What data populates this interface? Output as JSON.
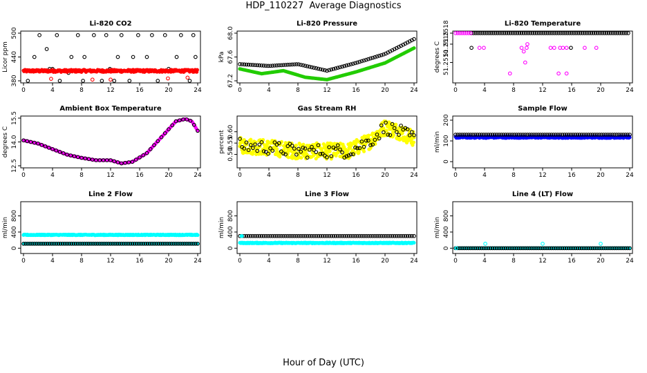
{
  "figure": {
    "title": "HDP_110227  Average Diagnostics",
    "xlabel": "Hour of Day (UTC)"
  },
  "colors": {
    "black": "#000000",
    "red": "#ff0000",
    "green": "#22cc00",
    "magenta": "#ff00ff",
    "yellow": "#ffff00",
    "blue": "#0000ff",
    "cyan": "#00ffff"
  },
  "chart_data": [
    {
      "type": "scatter",
      "title": "Li-820 CO2",
      "ylabel": "Licor ppm",
      "xlim": [
        0,
        24
      ],
      "ylim": [
        380,
        500
      ],
      "xticks": [
        "0",
        "4",
        "8",
        "12",
        "16",
        "20",
        "24"
      ],
      "yticks": [
        "380",
        "440",
        "500"
      ],
      "series": [
        {
          "color": "black",
          "hollow": true,
          "points": [
            [
              0.6,
              380
            ],
            [
              2.2,
              495
            ],
            [
              3.6,
              410
            ],
            [
              4.6,
              495
            ],
            [
              5.0,
              380
            ],
            [
              6.2,
              400
            ],
            [
              7.5,
              495
            ],
            [
              8.2,
              380
            ],
            [
              9.7,
              495
            ],
            [
              10.8,
              380
            ],
            [
              11.4,
              495
            ],
            [
              13.5,
              495
            ],
            [
              14.6,
              380
            ],
            [
              15.8,
              495
            ],
            [
              17.7,
              495
            ],
            [
              18.5,
              380
            ],
            [
              19.5,
              495
            ],
            [
              23.4,
              495
            ],
            [
              1.5,
              440
            ],
            [
              3.2,
              460
            ],
            [
              6.6,
              440
            ],
            [
              8.4,
              440
            ],
            [
              13.0,
              440
            ],
            [
              15.1,
              440
            ],
            [
              17.0,
              440
            ],
            [
              21.1,
              440
            ],
            [
              21.7,
              495
            ],
            [
              23.7,
              440
            ],
            [
              4.0,
              410
            ],
            [
              11.9,
              410
            ],
            [
              20.0,
              410
            ],
            [
              12.5,
              380
            ],
            [
              22.9,
              380
            ]
          ]
        },
        {
          "color": "red",
          "hollow": false,
          "band": true,
          "y": 405,
          "jitter": 3,
          "step": 0.07,
          "xrange": [
            0,
            24
          ]
        },
        {
          "color": "red",
          "hollow": true,
          "points": [
            [
              3.8,
              385
            ],
            [
              12.0,
              383
            ],
            [
              19.9,
              386
            ],
            [
              22.6,
              388
            ],
            [
              9.5,
              383
            ]
          ]
        }
      ]
    },
    {
      "type": "scatter",
      "title": "Li-820 Pressure",
      "ylabel": "kPa",
      "xlim": [
        0,
        24
      ],
      "ylim": [
        67.2,
        68.0
      ],
      "xticks": [
        "0",
        "4",
        "8",
        "12",
        "16",
        "20",
        "24"
      ],
      "yticks": [
        "67.2",
        "67.6",
        "68.0"
      ],
      "series": [
        {
          "color": "black",
          "hollow": true,
          "curve": [
            [
              0,
              67.48
            ],
            [
              4,
              67.45
            ],
            [
              8,
              67.48
            ],
            [
              12,
              67.37
            ],
            [
              16,
              67.5
            ],
            [
              20,
              67.65
            ],
            [
              24,
              67.9
            ]
          ],
          "step": 0.3
        },
        {
          "color": "green",
          "hollow": false,
          "curve": [
            [
              0,
              67.4
            ],
            [
              3,
              67.32
            ],
            [
              6,
              67.37
            ],
            [
              9,
              67.26
            ],
            [
              12,
              67.22
            ],
            [
              16,
              67.35
            ],
            [
              20,
              67.5
            ],
            [
              24,
              67.75
            ]
          ],
          "step": 0.2
        }
      ]
    },
    {
      "type": "scatter",
      "title": "Li-820 Temperature",
      "ylabel": "degrees C",
      "xlim": [
        0,
        24
      ],
      "ylim": [
        51.2505,
        51.2518
      ],
      "xticks": [
        "0",
        "4",
        "8",
        "12",
        "16",
        "20",
        "24"
      ],
      "yticks": [
        "51.2510",
        "51.2515",
        "51.2518"
      ],
      "series": [
        {
          "color": "black",
          "hollow": true,
          "band": true,
          "y": 51.2518,
          "jitter": 0,
          "step": 0.3,
          "xrange": [
            2.2,
            24
          ]
        },
        {
          "color": "magenta",
          "hollow": true,
          "band": true,
          "y": 51.2518,
          "jitter": 0,
          "step": 0.3,
          "xrange": [
            0,
            2.2
          ]
        },
        {
          "color": "magenta",
          "hollow": true,
          "points": [
            [
              3.3,
              51.2514
            ],
            [
              3.9,
              51.2514
            ],
            [
              7.5,
              51.2507
            ],
            [
              9.1,
              51.2514
            ],
            [
              9.4,
              51.2513
            ],
            [
              9.6,
              51.251
            ],
            [
              9.8,
              51.2514
            ],
            [
              9.9,
              51.2515
            ],
            [
              13.1,
              51.2514
            ],
            [
              13.6,
              51.2514
            ],
            [
              14.4,
              51.2514
            ],
            [
              14.8,
              51.2514
            ],
            [
              15.3,
              51.2514
            ],
            [
              17.8,
              51.2514
            ],
            [
              19.4,
              51.2514
            ],
            [
              14.2,
              51.2507
            ],
            [
              15.3,
              51.2507
            ]
          ]
        },
        {
          "color": "black",
          "hollow": true,
          "points": [
            [
              2.2,
              51.2514
            ],
            [
              15.9,
              51.2514
            ]
          ]
        }
      ]
    },
    {
      "type": "scatter",
      "title": "Ambient Box Temperature",
      "ylabel": "degrees C",
      "xlim": [
        0,
        24
      ],
      "ylim": [
        12.5,
        15.5
      ],
      "xticks": [
        "0",
        "4",
        "8",
        "12",
        "16",
        "20",
        "24"
      ],
      "yticks": [
        "12.5",
        "14.0",
        "15.5"
      ],
      "series": [
        {
          "color": "magenta",
          "hollow": false,
          "curve": [
            [
              0,
              14.1
            ],
            [
              2,
              13.9
            ],
            [
              4,
              13.55
            ],
            [
              6,
              13.2
            ],
            [
              8,
              13.0
            ],
            [
              10,
              12.85
            ],
            [
              12,
              12.85
            ],
            [
              13.5,
              12.65
            ],
            [
              15,
              12.75
            ],
            [
              17,
              13.3
            ],
            [
              19,
              14.3
            ],
            [
              21,
              15.3
            ],
            [
              22.3,
              15.45
            ],
            [
              23.2,
              15.3
            ],
            [
              24,
              14.7
            ]
          ],
          "step": 0.15
        },
        {
          "color": "black",
          "hollow": true,
          "curve": [
            [
              0,
              14.1
            ],
            [
              2,
              13.9
            ],
            [
              4,
              13.55
            ],
            [
              6,
              13.2
            ],
            [
              8,
              13.0
            ],
            [
              10,
              12.85
            ],
            [
              12,
              12.85
            ],
            [
              13.5,
              12.65
            ],
            [
              15,
              12.75
            ],
            [
              17,
              13.3
            ],
            [
              19,
              14.3
            ],
            [
              21,
              15.3
            ],
            [
              22.3,
              15.45
            ],
            [
              23.2,
              15.3
            ],
            [
              24,
              14.7
            ]
          ],
          "step": 0.5
        }
      ]
    },
    {
      "type": "scatter",
      "title": "Gas Stream RH",
      "ylabel": "percent",
      "xlim": [
        0,
        24
      ],
      "ylim": [
        0.45,
        0.66
      ],
      "xticks": [
        "0",
        "4",
        "8",
        "12",
        "16",
        "20",
        "24"
      ],
      "yticks": [
        "0.50",
        "0.55",
        "0.60"
      ],
      "series": [
        {
          "color": "yellow",
          "hollow": false,
          "noisy": true,
          "curve": [
            [
              0,
              0.54
            ],
            [
              4,
              0.53
            ],
            [
              8,
              0.515
            ],
            [
              12,
              0.515
            ],
            [
              15,
              0.515
            ],
            [
              18,
              0.56
            ],
            [
              20,
              0.62
            ],
            [
              22,
              0.6
            ],
            [
              24,
              0.57
            ]
          ],
          "jitter": 0.035,
          "step": 0.05
        },
        {
          "color": "black",
          "hollow": true,
          "noisy": true,
          "curve": [
            [
              0,
              0.54
            ],
            [
              4,
              0.53
            ],
            [
              8,
              0.515
            ],
            [
              12,
              0.515
            ],
            [
              15,
              0.515
            ],
            [
              18,
              0.56
            ],
            [
              20,
              0.62
            ],
            [
              22,
              0.6
            ],
            [
              24,
              0.57
            ]
          ],
          "jitter": 0.03,
          "step": 0.3
        }
      ]
    },
    {
      "type": "scatter",
      "title": "Sample Flow",
      "ylabel": "ml/min",
      "xlim": [
        0,
        24
      ],
      "ylim": [
        -20,
        210
      ],
      "xticks": [
        "0",
        "4",
        "8",
        "12",
        "16",
        "20",
        "24"
      ],
      "yticks": [
        "0",
        "100",
        "200"
      ],
      "series": [
        {
          "color": "blue",
          "hollow": false,
          "band": true,
          "y": 118,
          "jitter": 4,
          "step": 0.06,
          "xrange": [
            0,
            24
          ]
        },
        {
          "color": "black",
          "hollow": true,
          "band": true,
          "y": 130,
          "jitter": 0,
          "step": 0.3,
          "xrange": [
            0,
            24
          ]
        }
      ]
    },
    {
      "type": "scatter",
      "title": "Line 2 Flow",
      "ylabel": "ml/min",
      "xlim": [
        0,
        24
      ],
      "ylim": [
        -80,
        1100
      ],
      "xticks": [
        "0",
        "4",
        "8",
        "12",
        "16",
        "20",
        "24"
      ],
      "yticks": [
        "0",
        "400",
        "800"
      ],
      "series": [
        {
          "color": "cyan",
          "hollow": false,
          "band": true,
          "y": 330,
          "jitter": 10,
          "step": 0.06,
          "xrange": [
            0,
            24
          ]
        },
        {
          "color": "cyan",
          "hollow": false,
          "band": true,
          "y": 110,
          "jitter": 0,
          "step": 0.06,
          "xrange": [
            0,
            24
          ]
        },
        {
          "color": "black",
          "hollow": true,
          "band": true,
          "y": 110,
          "jitter": 0,
          "step": 0.3,
          "xrange": [
            0,
            24
          ]
        }
      ]
    },
    {
      "type": "scatter",
      "title": "Line 3 Flow",
      "ylabel": "ml/min",
      "xlim": [
        0,
        24
      ],
      "ylim": [
        -80,
        1100
      ],
      "xticks": [
        "0",
        "4",
        "8",
        "12",
        "16",
        "20",
        "24"
      ],
      "yticks": [
        "0",
        "400",
        "800"
      ],
      "series": [
        {
          "color": "cyan",
          "hollow": false,
          "band": true,
          "y": 130,
          "jitter": 10,
          "step": 0.06,
          "xrange": [
            0,
            24
          ]
        },
        {
          "color": "black",
          "hollow": true,
          "band": true,
          "y": 300,
          "jitter": 0,
          "step": 0.3,
          "xrange": [
            0,
            24
          ]
        },
        {
          "color": "cyan",
          "hollow": false,
          "points": [
            [
              0.2,
              300
            ],
            [
              0.3,
              300
            ]
          ]
        }
      ]
    },
    {
      "type": "scatter",
      "title": "Line 4 (LT) Flow",
      "ylabel": "ml/min",
      "xlim": [
        0,
        24
      ],
      "ylim": [
        -80,
        1100
      ],
      "xticks": [
        "0",
        "4",
        "8",
        "12",
        "16",
        "20",
        "24"
      ],
      "yticks": [
        "0",
        "400",
        "800"
      ],
      "series": [
        {
          "color": "cyan",
          "hollow": false,
          "band": true,
          "y": 0,
          "jitter": 0,
          "step": 0.06,
          "xrange": [
            0,
            24
          ]
        },
        {
          "color": "black",
          "hollow": true,
          "band": true,
          "y": 0,
          "jitter": 0,
          "step": 0.3,
          "xrange": [
            0,
            24
          ]
        },
        {
          "color": "cyan",
          "hollow": true,
          "points": [
            [
              0.1,
              0
            ],
            [
              4.1,
              110
            ],
            [
              12.0,
              110
            ],
            [
              20.0,
              110
            ]
          ]
        }
      ]
    }
  ]
}
